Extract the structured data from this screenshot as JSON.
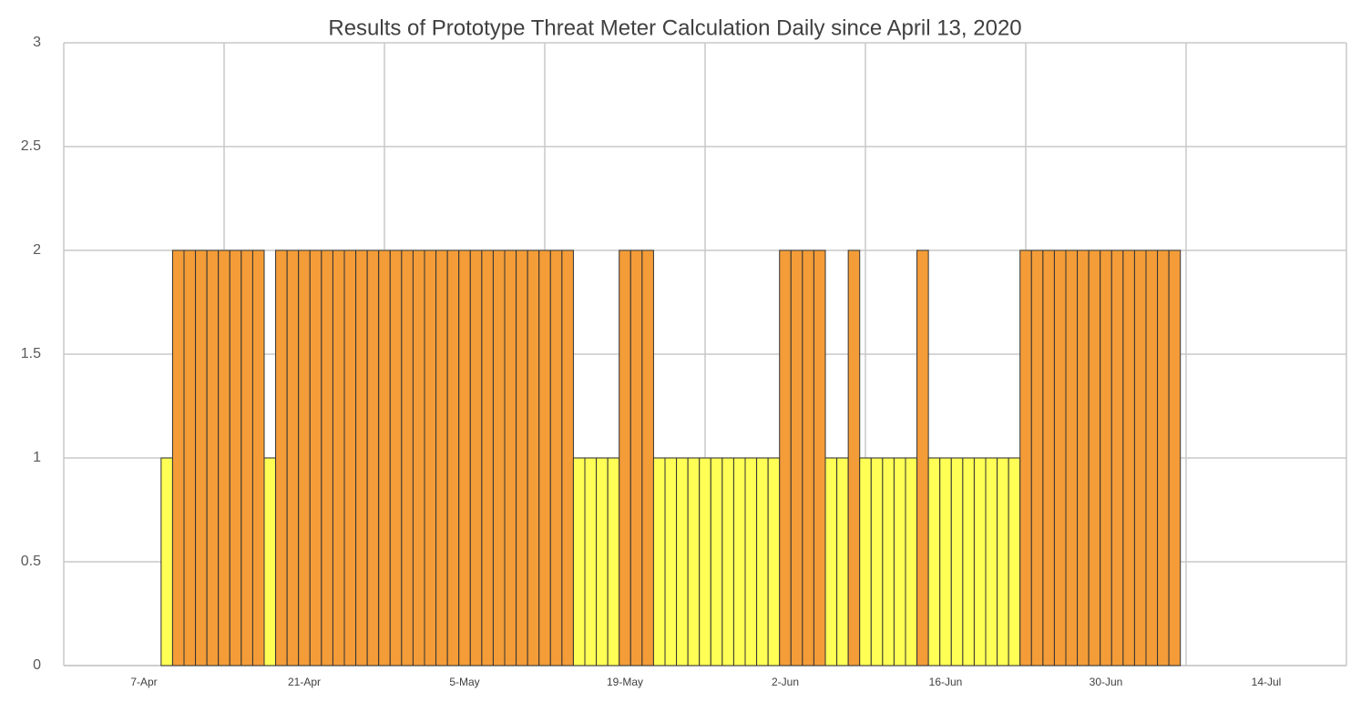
{
  "chart_data": {
    "type": "bar",
    "title": "Results of Prototype Threat Meter Calculation Daily since April 13, 2020",
    "x": [
      "9-Apr",
      "10-Apr",
      "11-Apr",
      "12-Apr",
      "13-Apr",
      "14-Apr",
      "15-Apr",
      "16-Apr",
      "17-Apr",
      "18-Apr",
      "19-Apr",
      "20-Apr",
      "21-Apr",
      "22-Apr",
      "23-Apr",
      "24-Apr",
      "25-Apr",
      "26-Apr",
      "27-Apr",
      "28-Apr",
      "29-Apr",
      "30-Apr",
      "1-May",
      "2-May",
      "3-May",
      "4-May",
      "5-May",
      "6-May",
      "7-May",
      "8-May",
      "9-May",
      "10-May",
      "11-May",
      "12-May",
      "13-May",
      "14-May",
      "15-May",
      "16-May",
      "17-May",
      "18-May",
      "19-May",
      "20-May",
      "21-May",
      "22-May",
      "23-May",
      "24-May",
      "25-May",
      "26-May",
      "27-May",
      "28-May",
      "29-May",
      "30-May",
      "31-May",
      "1-Jun",
      "2-Jun",
      "3-Jun",
      "4-Jun",
      "5-Jun",
      "6-Jun",
      "7-Jun",
      "8-Jun",
      "9-Jun",
      "10-Jun",
      "11-Jun",
      "12-Jun",
      "13-Jun",
      "14-Jun",
      "15-Jun",
      "16-Jun",
      "17-Jun",
      "18-Jun",
      "19-Jun",
      "20-Jun",
      "21-Jun",
      "22-Jun",
      "23-Jun",
      "24-Jun",
      "25-Jun",
      "26-Jun",
      "27-Jun",
      "28-Jun",
      "29-Jun",
      "30-Jun",
      "1-Jul",
      "2-Jul",
      "3-Jul",
      "4-Jul",
      "5-Jul",
      "6-Jul"
    ],
    "values": [
      1,
      2,
      2,
      2,
      2,
      2,
      2,
      2,
      2,
      1,
      2,
      2,
      2,
      2,
      2,
      2,
      2,
      2,
      2,
      2,
      2,
      2,
      2,
      2,
      2,
      2,
      2,
      2,
      2,
      2,
      2,
      2,
      2,
      2,
      2,
      2,
      1,
      1,
      1,
      1,
      2,
      2,
      2,
      1,
      1,
      1,
      1,
      1,
      1,
      1,
      1,
      1,
      1,
      1,
      2,
      2,
      2,
      2,
      1,
      1,
      2,
      1,
      1,
      1,
      1,
      1,
      2,
      1,
      1,
      1,
      1,
      1,
      1,
      1,
      1,
      2,
      2,
      2,
      2,
      2,
      2,
      2,
      2,
      2,
      2,
      2,
      2,
      2,
      2
    ],
    "colors": [
      "#ffff55",
      "#f39c38",
      "#f39c38",
      "#f39c38",
      "#f39c38",
      "#f39c38",
      "#f39c38",
      "#f39c38",
      "#f39c38",
      "#ffff55",
      "#f39c38",
      "#f39c38",
      "#f39c38",
      "#f39c38",
      "#f39c38",
      "#f39c38",
      "#f39c38",
      "#f39c38",
      "#f39c38",
      "#f39c38",
      "#f39c38",
      "#f39c38",
      "#f39c38",
      "#f39c38",
      "#f39c38",
      "#f39c38",
      "#f39c38",
      "#f39c38",
      "#f39c38",
      "#f39c38",
      "#f39c38",
      "#f39c38",
      "#f39c38",
      "#f39c38",
      "#f39c38",
      "#f39c38",
      "#ffff55",
      "#ffff55",
      "#ffff55",
      "#ffff55",
      "#f39c38",
      "#f39c38",
      "#f39c38",
      "#ffff55",
      "#ffff55",
      "#ffff55",
      "#ffff55",
      "#ffff55",
      "#ffff55",
      "#ffff55",
      "#ffff55",
      "#ffff55",
      "#ffff55",
      "#ffff55",
      "#f39c38",
      "#f39c38",
      "#f39c38",
      "#f39c38",
      "#ffff55",
      "#ffff55",
      "#f39c38",
      "#ffff55",
      "#ffff55",
      "#ffff55",
      "#ffff55",
      "#ffff55",
      "#f39c38",
      "#ffff55",
      "#ffff55",
      "#ffff55",
      "#ffff55",
      "#ffff55",
      "#ffff55",
      "#ffff55",
      "#ffff55",
      "#f39c38",
      "#f39c38",
      "#f39c38",
      "#f39c38",
      "#f39c38",
      "#f39c38",
      "#f39c38",
      "#f39c38",
      "#f39c38",
      "#f39c38",
      "#f39c38",
      "#f39c38",
      "#f39c38",
      "#f39c38"
    ],
    "xlim": [
      "31-Mar",
      "21-Jul"
    ],
    "xticks": [
      "7-Apr",
      "21-Apr",
      "5-May",
      "19-May",
      "2-Jun",
      "16-Jun",
      "30-Jun",
      "14-Jul"
    ],
    "ylim": [
      0,
      3
    ],
    "yticks": [
      0,
      0.5,
      1,
      1.5,
      2,
      2.5,
      3
    ],
    "grid": true
  }
}
